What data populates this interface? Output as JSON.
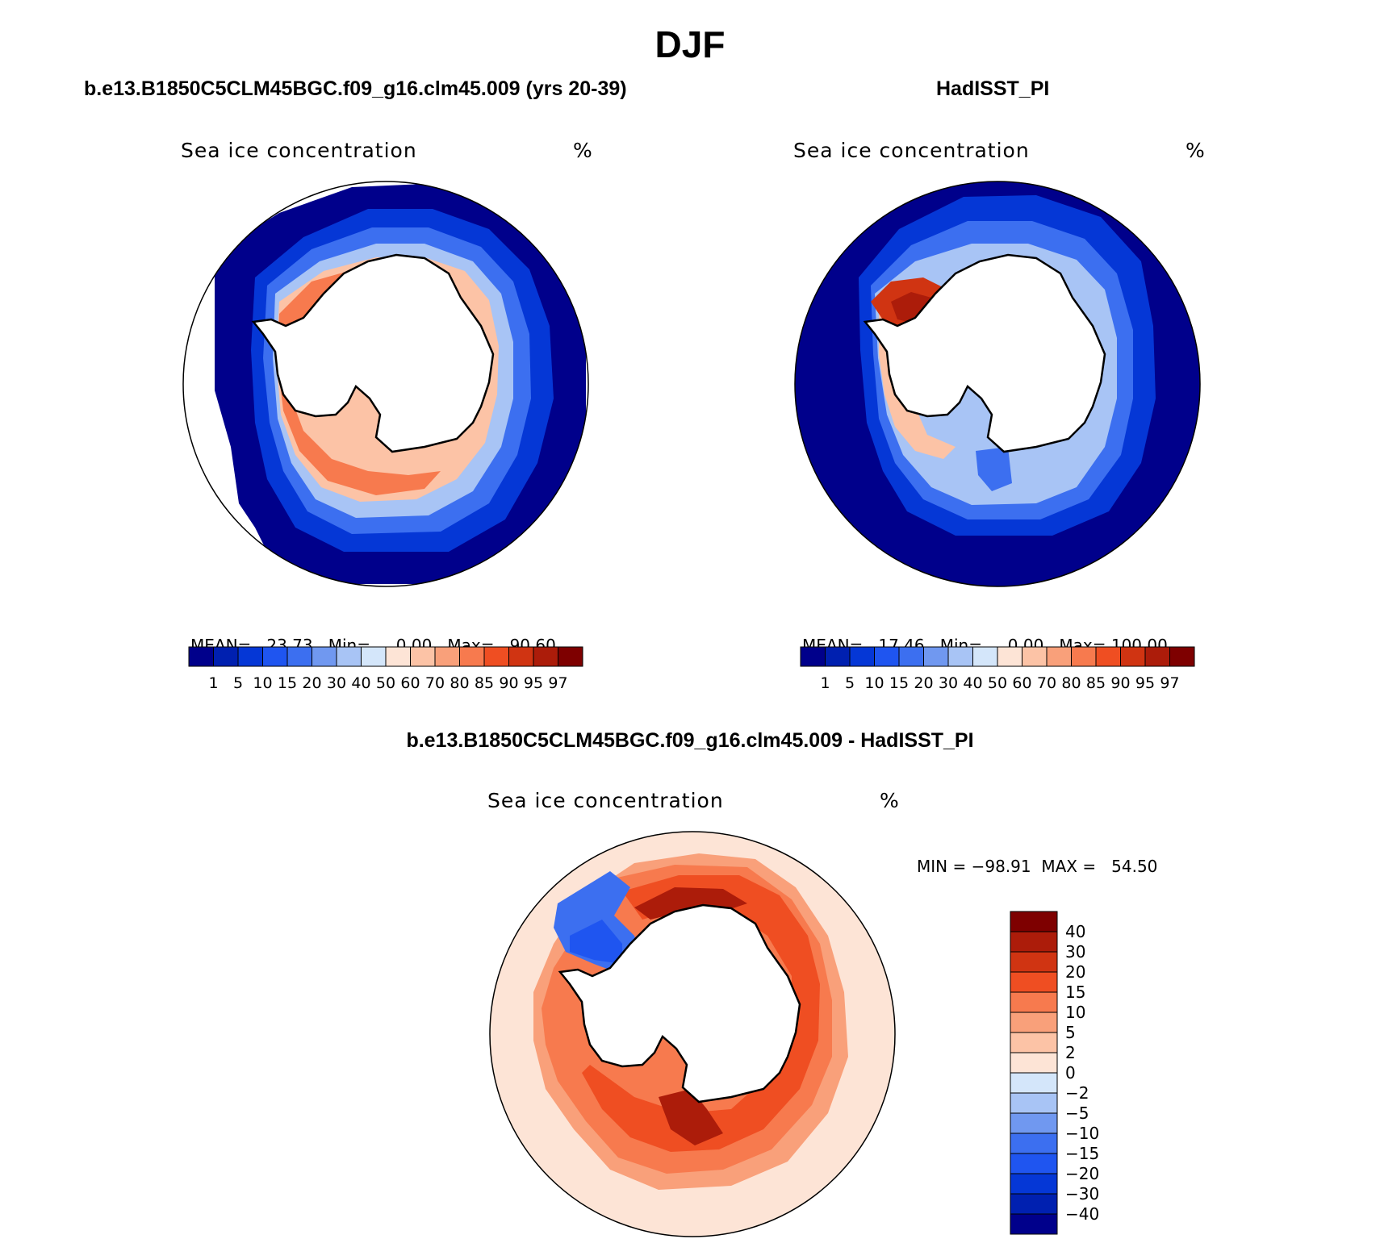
{
  "figure": {
    "title": "DJF"
  },
  "panels": [
    {
      "case_title": "b.e13.B1850C5CLM45BGC.f09_g16.clm45.009 (yrs 20-39)",
      "variable": "Sea ice concentration",
      "units": "%",
      "stats": {
        "mean_label": "MEAN=",
        "mean": "23.73",
        "min_label": "Min=",
        "min": "0.00",
        "max_label": "Max=",
        "max": "90.60"
      }
    },
    {
      "case_title": "HadISST_PI",
      "variable": "Sea ice concentration",
      "units": "%",
      "stats": {
        "mean_label": "MEAN=",
        "mean": "17.46",
        "min_label": "Min=",
        "min": "0.00",
        "max_label": "Max=",
        "max": "100.00"
      }
    },
    {
      "case_title": "b.e13.B1850C5CLM45BGC.f09_g16.clm45.009 - HadISST_PI",
      "variable": "Sea ice concentration",
      "units": "%",
      "minmax_text": "MIN = −98.91  MAX =   54.50"
    }
  ],
  "chart_data": [
    {
      "type": "heatmap",
      "projection": "south polar stereographic",
      "title": "Sea ice concentration",
      "units": "%",
      "colorbar": {
        "levels": [
          "1",
          "5",
          "10",
          "15",
          "20",
          "30",
          "40",
          "50",
          "60",
          "70",
          "80",
          "85",
          "90",
          "95",
          "97"
        ],
        "colors": [
          "#00008b",
          "#0020b0",
          "#0537d6",
          "#1f55f0",
          "#3c6ff0",
          "#7098f0",
          "#a8c4f5",
          "#d4e6fa",
          "#fde4d6",
          "#fcc3a6",
          "#f9a07a",
          "#f77a4e",
          "#ef4e22",
          "#d03412",
          "#ac1c0a",
          "#7e0000"
        ]
      },
      "stats": {
        "mean": 23.73,
        "min": 0.0,
        "max": 90.6
      }
    },
    {
      "type": "heatmap",
      "projection": "south polar stereographic",
      "title": "Sea ice concentration",
      "units": "%",
      "colorbar": {
        "levels": [
          "1",
          "5",
          "10",
          "15",
          "20",
          "30",
          "40",
          "50",
          "60",
          "70",
          "80",
          "85",
          "90",
          "95",
          "97"
        ],
        "colors": [
          "#00008b",
          "#0020b0",
          "#0537d6",
          "#1f55f0",
          "#3c6ff0",
          "#7098f0",
          "#a8c4f5",
          "#d4e6fa",
          "#fde4d6",
          "#fcc3a6",
          "#f9a07a",
          "#f77a4e",
          "#ef4e22",
          "#d03412",
          "#ac1c0a",
          "#7e0000"
        ]
      },
      "stats": {
        "mean": 17.46,
        "min": 0.0,
        "max": 100.0
      }
    },
    {
      "type": "heatmap",
      "projection": "south polar stereographic",
      "title": "Sea ice concentration",
      "units": "%",
      "colorbar": {
        "levels": [
          "40",
          "30",
          "20",
          "15",
          "10",
          "5",
          "2",
          "0",
          "−2",
          "−5",
          "−10",
          "−15",
          "−20",
          "−30",
          "−40"
        ],
        "colors": [
          "#7e0000",
          "#ac1c0a",
          "#d03412",
          "#ef4e22",
          "#f77a4e",
          "#f9a07a",
          "#fcc3a6",
          "#fde4d6",
          "#d4e6fa",
          "#a8c4f5",
          "#7098f0",
          "#3c6ff0",
          "#1f55f0",
          "#0537d6",
          "#0020b0",
          "#00008b"
        ]
      },
      "stats": {
        "min": -98.91,
        "max": 54.5
      }
    }
  ]
}
